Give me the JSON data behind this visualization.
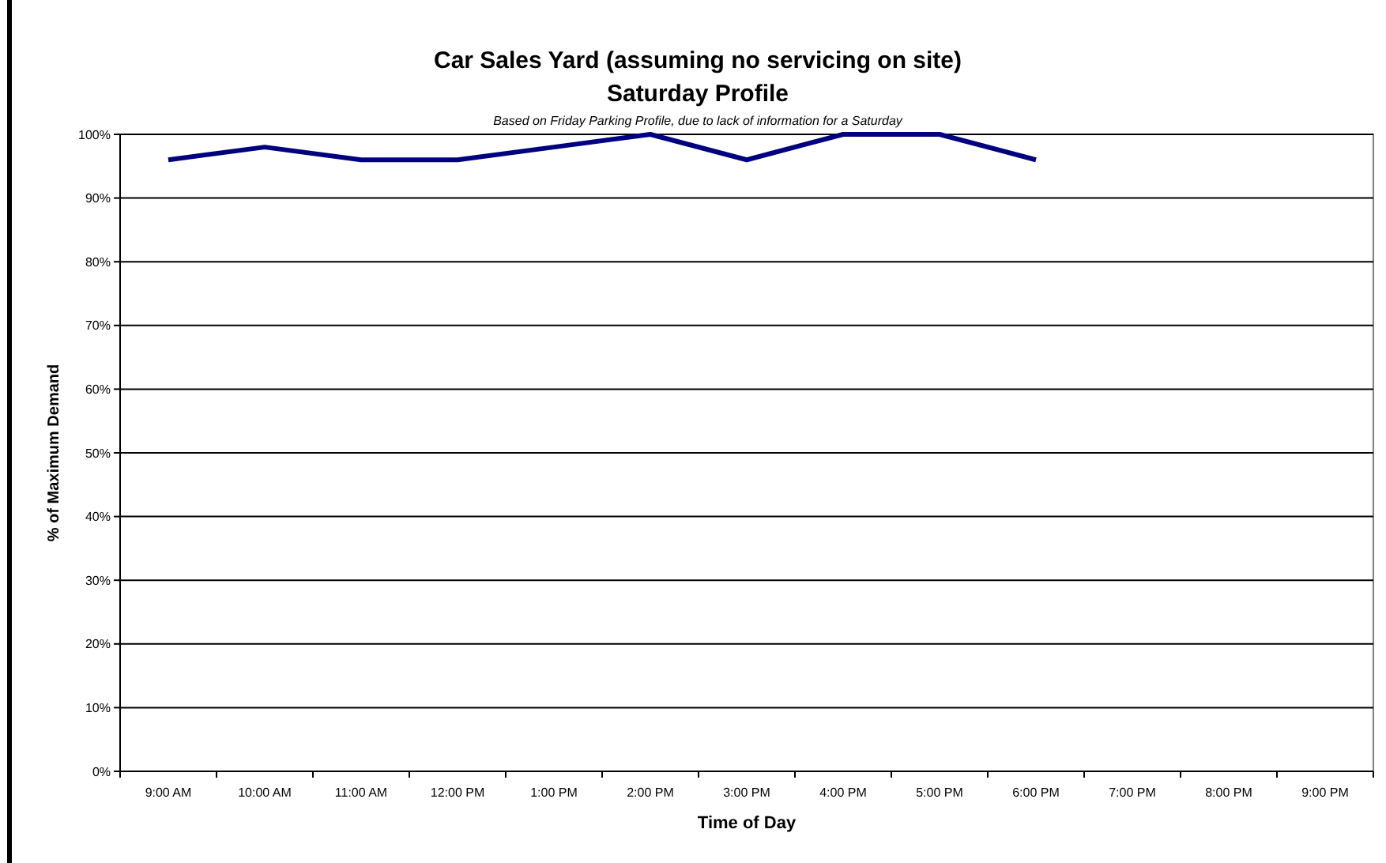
{
  "chart_data": {
    "type": "line",
    "title": "Car Sales Yard (assuming no servicing on site)",
    "subtitle": "Saturday Profile",
    "annotations": [
      "Based on Friday Parking Profile, due to lack of information for a Saturday"
    ],
    "xlabel": "Time of Day",
    "ylabel": "% of Maximum Demand",
    "categories": [
      "9:00 AM",
      "10:00 AM",
      "11:00 AM",
      "12:00 PM",
      "1:00 PM",
      "2:00 PM",
      "3:00 PM",
      "4:00 PM",
      "5:00 PM",
      "6:00 PM",
      "7:00 PM",
      "8:00 PM",
      "9:00 PM"
    ],
    "series": [
      {
        "color": "#000080",
        "values": [
          96,
          98,
          96,
          96,
          98,
          100,
          96,
          100,
          100,
          96,
          null,
          null,
          null
        ]
      }
    ],
    "ylim": [
      0,
      100
    ],
    "yticks": [
      {
        "value": 0,
        "label": "0%"
      },
      {
        "value": 10,
        "label": "10%"
      },
      {
        "value": 20,
        "label": "20%"
      },
      {
        "value": 30,
        "label": "30%"
      },
      {
        "value": 40,
        "label": "40%"
      },
      {
        "value": 50,
        "label": "50%"
      },
      {
        "value": 60,
        "label": "60%"
      },
      {
        "value": 70,
        "label": "70%"
      },
      {
        "value": 80,
        "label": "80%"
      },
      {
        "value": 90,
        "label": "90%"
      },
      {
        "value": 100,
        "label": "100%"
      }
    ],
    "grid": "y",
    "marker": "none",
    "line_style": "solid"
  }
}
